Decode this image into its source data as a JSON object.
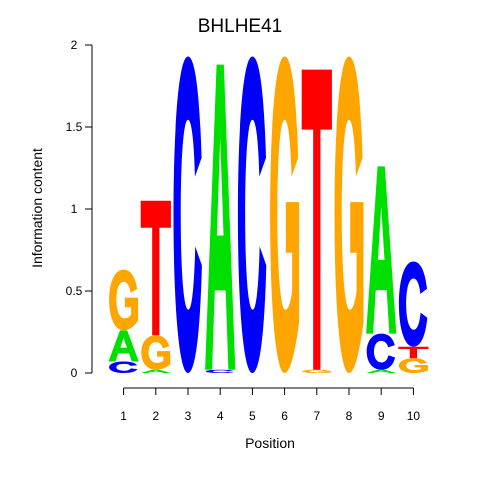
{
  "chart_data": {
    "type": "sequence-logo",
    "title": "BHLHE41",
    "xlabel": "Position",
    "ylabel": "Information content",
    "ylim": [
      0,
      2
    ],
    "yticks": [
      0,
      0.5,
      1,
      1.5,
      2
    ],
    "ytick_labels": [
      "0",
      "0.5",
      "1",
      "1.5",
      "2"
    ],
    "positions": [
      "1",
      "2",
      "3",
      "4",
      "5",
      "6",
      "7",
      "8",
      "9",
      "10"
    ],
    "colors": {
      "A": "#00e000",
      "C": "#0000ff",
      "G": "#ffa500",
      "T": "#ff0000"
    },
    "stacks": [
      [
        {
          "letter": "C",
          "height": 0.07
        },
        {
          "letter": "A",
          "height": 0.19
        },
        {
          "letter": "G",
          "height": 0.37
        }
      ],
      [
        {
          "letter": "A",
          "height": 0.02
        },
        {
          "letter": "G",
          "height": 0.21
        },
        {
          "letter": "T",
          "height": 0.82
        }
      ],
      [
        {
          "letter": "C",
          "height": 1.93
        }
      ],
      [
        {
          "letter": "C",
          "height": 0.02
        },
        {
          "letter": "A",
          "height": 1.86
        }
      ],
      [
        {
          "letter": "C",
          "height": 1.93
        }
      ],
      [
        {
          "letter": "G",
          "height": 1.93
        }
      ],
      [
        {
          "letter": "G",
          "height": 0.02
        },
        {
          "letter": "T",
          "height": 1.83
        }
      ],
      [
        {
          "letter": "G",
          "height": 1.93
        }
      ],
      [
        {
          "letter": "A",
          "height": 0.02
        },
        {
          "letter": "C",
          "height": 0.22
        },
        {
          "letter": "A",
          "height": 1.02
        }
      ],
      [
        {
          "letter": "G",
          "height": 0.09
        },
        {
          "letter": "T",
          "height": 0.07
        },
        {
          "letter": "C",
          "height": 0.52
        }
      ]
    ]
  }
}
